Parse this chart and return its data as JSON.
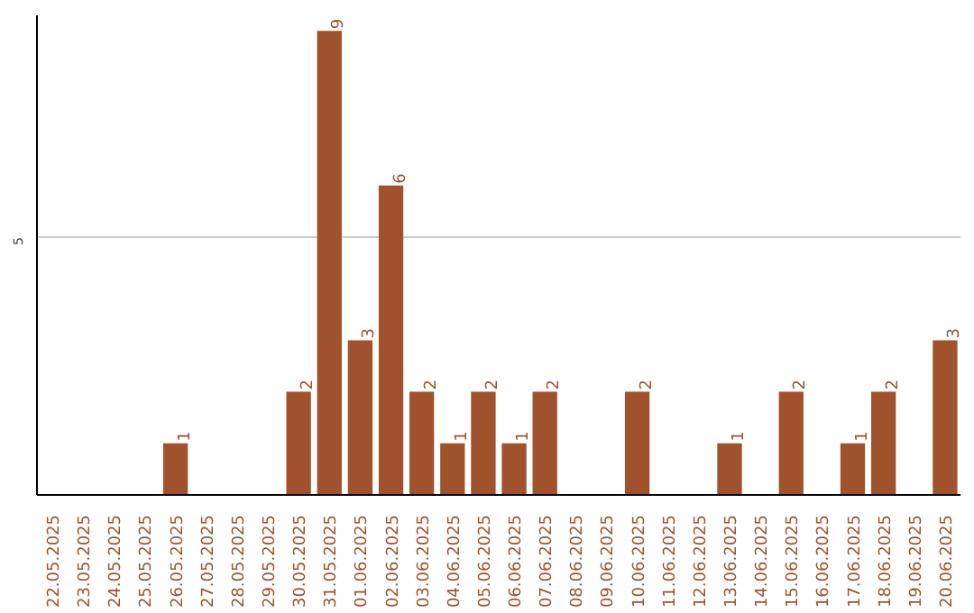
{
  "chart_data": {
    "type": "bar",
    "categories": [
      "22.05.2025",
      "23.05.2025",
      "24.05.2025",
      "25.05.2025",
      "26.05.2025",
      "27.05.2025",
      "28.05.2025",
      "29.05.2025",
      "30.05.2025",
      "31.05.2025",
      "01.06.2025",
      "02.06.2025",
      "03.06.2025",
      "04.06.2025",
      "05.06.2025",
      "06.06.2025",
      "07.06.2025",
      "08.06.2025",
      "09.06.2025",
      "10.06.2025",
      "11.06.2025",
      "12.06.2025",
      "13.06.2025",
      "14.06.2025",
      "15.06.2025",
      "16.06.2025",
      "17.06.2025",
      "18.06.2025",
      "19.06.2025",
      "20.06.2025"
    ],
    "values": [
      0,
      0,
      0,
      0,
      1,
      0,
      0,
      0,
      2,
      9,
      3,
      6,
      2,
      1,
      2,
      1,
      2,
      0,
      0,
      2,
      0,
      0,
      1,
      0,
      2,
      0,
      1,
      2,
      0,
      3
    ],
    "value_labels": [
      null,
      null,
      null,
      null,
      "1",
      null,
      null,
      null,
      "2",
      "9",
      "3",
      "6",
      "2",
      "1",
      "2",
      "1",
      "2",
      null,
      null,
      "2",
      null,
      null,
      "1",
      null,
      "2",
      null,
      "1",
      "2",
      null,
      "3"
    ],
    "color": "#a0522d",
    "ylim": [
      0,
      9.3
    ],
    "yticks": [
      5
    ],
    "grid": "y"
  }
}
